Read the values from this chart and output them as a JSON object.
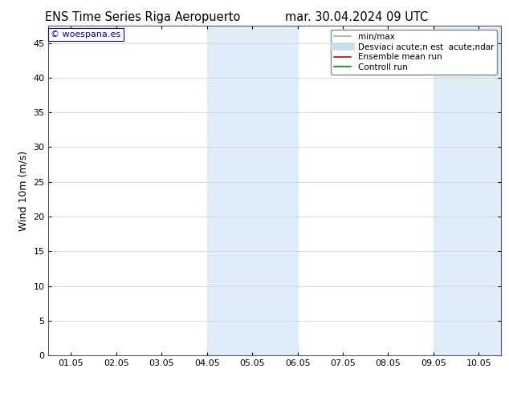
{
  "title_left": "ENS Time Series Riga Aeropuerto",
  "title_right": "mar. 30.04.2024 09 UTC",
  "ylabel": "Wind 10m (m/s)",
  "ylim": [
    0,
    47.5
  ],
  "yticks": [
    0,
    5,
    10,
    15,
    20,
    25,
    30,
    35,
    40,
    45
  ],
  "xtick_labels": [
    "01.05",
    "02.05",
    "03.05",
    "04.05",
    "05.05",
    "06.05",
    "07.05",
    "08.05",
    "09.05",
    "10.05"
  ],
  "shade_bands": [
    {
      "xstart": 3.0,
      "xend": 5.0
    },
    {
      "xstart": 8.0,
      "xend": 10.0
    }
  ],
  "shade_color": "#deedf8",
  "background_color": "#ffffff",
  "plot_bg_color": "#ffffff",
  "watermark": "© woespana.es",
  "legend_items": [
    {
      "label": "min/max",
      "color": "#aaaaaa",
      "lw": 1.2,
      "style": "solid"
    },
    {
      "label": "Desviaci acute;n est  acute;ndar",
      "color": "#c8dced",
      "lw": 7,
      "style": "solid"
    },
    {
      "label": "Ensemble mean run",
      "color": "#cc0000",
      "lw": 1.2,
      "style": "solid"
    },
    {
      "label": "Controll run",
      "color": "#008800",
      "lw": 1.2,
      "style": "solid"
    }
  ],
  "grid_color": "#cccccc",
  "grid_lw": 0.5,
  "title_fontsize": 10.5,
  "ylabel_fontsize": 9,
  "tick_fontsize": 8,
  "legend_fontsize": 7.5
}
